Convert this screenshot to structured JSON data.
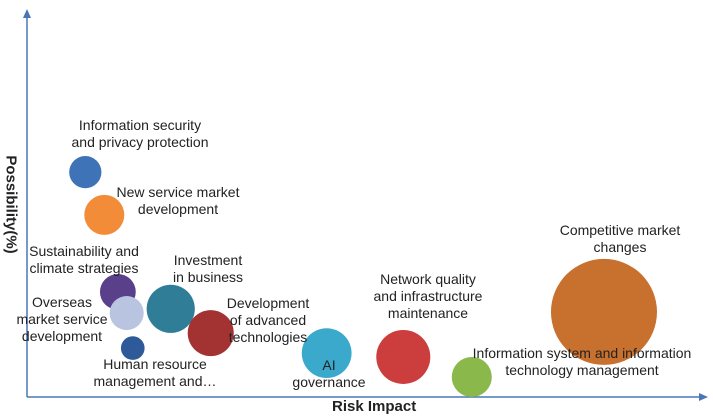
{
  "chart_data": {
    "type": "bubble",
    "xlabel": "Risk Impact",
    "ylabel": "Possibility(%)",
    "xlim": [
      0,
      100
    ],
    "ylim": [
      0,
      100
    ],
    "series": [
      {
        "name": "Information security\nand privacy protection",
        "color": "#3f73b8",
        "x": 8.6,
        "y": 58.4,
        "size": 26
      },
      {
        "name": "New service market\ndevelopment",
        "color": "#f28c38",
        "x": 11.4,
        "y": 47.3,
        "size": 40
      },
      {
        "name": "Sustainability and\nclimate strategies",
        "color": "#5a3f8a",
        "x": 13.4,
        "y": 27.3,
        "size": 32
      },
      {
        "name": "Overseas\nmarket service\ndevelopment",
        "color": "#b8c4e0",
        "x": 14.7,
        "y": 21.8,
        "size": 29
      },
      {
        "name": "Investment\nin business",
        "color": "#2f7d96",
        "x": 21.2,
        "y": 22.9,
        "size": 58
      },
      {
        "name": "Development\nof advanced\ntechnologies",
        "color": "#a33232",
        "x": 27.1,
        "y": 16.6,
        "size": 53
      },
      {
        "name": "Human resource\nmanagement and…",
        "color": "#2e5a9a",
        "x": 15.6,
        "y": 12.7,
        "size": 14
      },
      {
        "name": "AI\ngovernance",
        "color": "#3aa9cc",
        "x": 44.2,
        "y": 11.4,
        "size": 62
      },
      {
        "name": "Network quality\nand infrastructure\nmaintenance",
        "color": "#cc3d3d",
        "x": 55.5,
        "y": 10.4,
        "size": 73
      },
      {
        "name": "Information system and information\ntechnology management",
        "color": "#8ab84a",
        "x": 65.6,
        "y": 5.2,
        "size": 40
      },
      {
        "name": "Competitive market\nchanges",
        "color": "#c8702e",
        "x": 85.1,
        "y": 22.1,
        "size": 281
      }
    ]
  }
}
